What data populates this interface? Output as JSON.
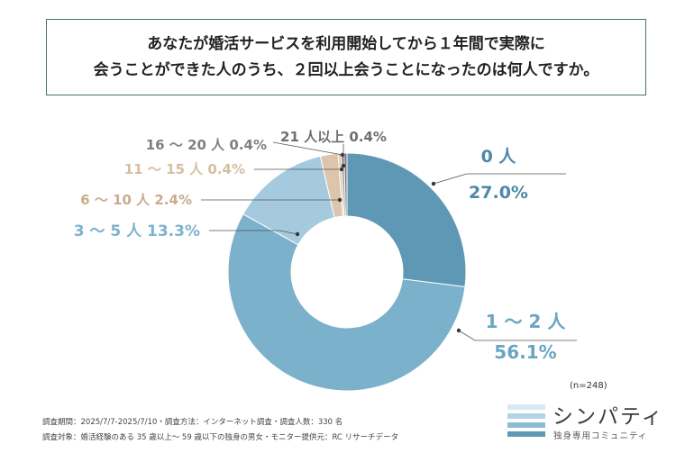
{
  "title_lines": [
    "あなたが婚活サービスを利用開始してから１年間で実際に",
    "会うことができた人のうち、２回以上会うことになったのは何人ですか。"
  ],
  "chart_data": {
    "type": "pie",
    "donut": true,
    "categories": [
      "0 人",
      "1 ～ 2 人",
      "3 ～ 5 人",
      "6 ～ 10 人",
      "11 ～ 15 人",
      "16 ～ 20 人",
      "21 人以上"
    ],
    "values": [
      27.0,
      56.1,
      13.3,
      2.4,
      0.4,
      0.4,
      0.4
    ],
    "value_labels": [
      "27.0%",
      "56.1%",
      "13.3%",
      "2.4%",
      "0.4%",
      "0.4%",
      "0.4%"
    ],
    "colors": [
      "#5f98b5",
      "#7cb1cb",
      "#a5cadf",
      "#dcc5aa",
      "#dcc8b0",
      "#9a9a9a",
      "#7a7a7a"
    ],
    "label_colors": [
      "#4f88a8",
      "#6aa5c2",
      "#7fb3cd",
      "#c9ac8a",
      "#d5bfa3",
      "#808080",
      "#6e6e6e"
    ],
    "sample_size_label": "(n=248)"
  },
  "footnotes": [
    "調査期間：2025/7/7-2025/7/10・調査方法：インターネット調査・調査人数：330 名",
    "調査対象：婚活経験のある 35 歳以上～ 59 歳以下の独身の男女・モニター提供元：RC リサーチデータ"
  ],
  "logo": {
    "name": "シンパティ",
    "tagline": "独身専用コミュニティ",
    "bar_colors": [
      "#d6e9f4",
      "#b3d3e6",
      "#8dbbd5",
      "#5f98b5"
    ]
  }
}
